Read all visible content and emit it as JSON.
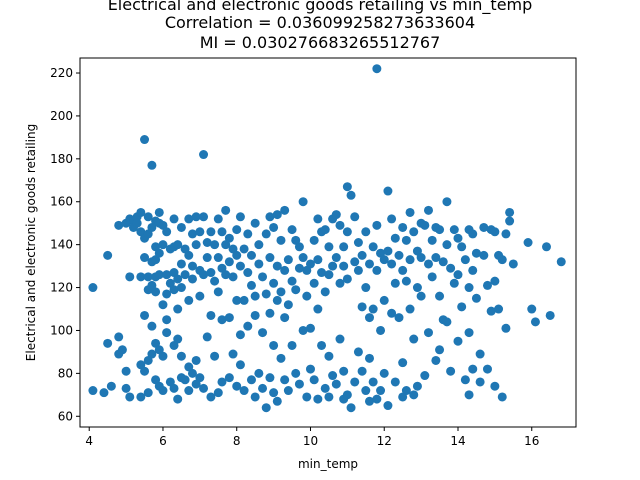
{
  "chart_data": {
    "type": "scatter",
    "title_lines": [
      "Electrical and electronic goods retailing vs min_temp",
      "Correlation = 0.036099258273633604",
      "MI = 0.030276683265512767"
    ],
    "xlabel": "min_temp",
    "ylabel": "Electrical and electronic goods retailing",
    "xlim": [
      3.75,
      17.2
    ],
    "ylim": [
      55,
      227
    ],
    "xticks": [
      4,
      6,
      8,
      10,
      12,
      14,
      16
    ],
    "yticks": [
      60,
      80,
      100,
      120,
      140,
      160,
      180,
      200,
      220
    ],
    "marker_color": "#1f77b4",
    "points": [
      [
        4.1,
        120
      ],
      [
        4.1,
        72
      ],
      [
        4.4,
        71
      ],
      [
        4.5,
        135
      ],
      [
        4.5,
        94
      ],
      [
        4.6,
        74
      ],
      [
        4.8,
        149
      ],
      [
        4.8,
        89
      ],
      [
        4.8,
        97
      ],
      [
        4.9,
        91
      ],
      [
        5.0,
        150
      ],
      [
        5.0,
        81
      ],
      [
        5.0,
        73
      ],
      [
        5.1,
        152
      ],
      [
        5.1,
        125
      ],
      [
        5.1,
        69
      ],
      [
        5.2,
        151
      ],
      [
        5.2,
        148
      ],
      [
        5.3,
        153
      ],
      [
        5.3,
        150
      ],
      [
        5.4,
        155
      ],
      [
        5.4,
        146
      ],
      [
        5.4,
        125
      ],
      [
        5.4,
        84
      ],
      [
        5.4,
        69
      ],
      [
        5.5,
        189
      ],
      [
        5.5,
        143
      ],
      [
        5.5,
        134
      ],
      [
        5.5,
        107
      ],
      [
        5.5,
        81
      ],
      [
        5.6,
        153
      ],
      [
        5.6,
        145
      ],
      [
        5.6,
        125
      ],
      [
        5.6,
        119
      ],
      [
        5.6,
        86
      ],
      [
        5.6,
        71
      ],
      [
        5.7,
        177
      ],
      [
        5.7,
        148
      ],
      [
        5.7,
        132
      ],
      [
        5.7,
        121
      ],
      [
        5.7,
        102
      ],
      [
        5.7,
        89
      ],
      [
        5.8,
        151
      ],
      [
        5.8,
        139
      ],
      [
        5.8,
        133
      ],
      [
        5.8,
        125
      ],
      [
        5.8,
        118
      ],
      [
        5.8,
        94
      ],
      [
        5.8,
        77
      ],
      [
        5.9,
        155
      ],
      [
        5.9,
        150
      ],
      [
        5.9,
        136
      ],
      [
        5.9,
        126
      ],
      [
        5.9,
        91
      ],
      [
        5.9,
        74
      ],
      [
        6.0,
        149
      ],
      [
        6.0,
        140
      ],
      [
        6.0,
        112
      ],
      [
        6.0,
        88
      ],
      [
        6.0,
        72
      ],
      [
        6.1,
        146
      ],
      [
        6.1,
        126
      ],
      [
        6.1,
        117
      ],
      [
        6.1,
        105
      ],
      [
        6.1,
        99
      ],
      [
        6.2,
        138
      ],
      [
        6.2,
        122
      ],
      [
        6.2,
        76
      ],
      [
        6.3,
        152
      ],
      [
        6.3,
        139
      ],
      [
        6.3,
        127
      ],
      [
        6.3,
        119
      ],
      [
        6.3,
        93
      ],
      [
        6.3,
        73
      ],
      [
        6.4,
        140
      ],
      [
        6.4,
        124
      ],
      [
        6.4,
        110
      ],
      [
        6.4,
        96
      ],
      [
        6.4,
        68
      ],
      [
        6.5,
        148
      ],
      [
        6.5,
        131
      ],
      [
        6.5,
        120
      ],
      [
        6.5,
        88
      ],
      [
        6.5,
        78
      ],
      [
        6.6,
        138
      ],
      [
        6.6,
        126
      ],
      [
        6.6,
        77
      ],
      [
        6.7,
        152
      ],
      [
        6.7,
        135
      ],
      [
        6.7,
        114
      ],
      [
        6.7,
        83
      ],
      [
        6.7,
        72
      ],
      [
        6.8,
        145
      ],
      [
        6.8,
        130
      ],
      [
        6.8,
        124
      ],
      [
        6.8,
        80
      ],
      [
        6.9,
        153
      ],
      [
        6.9,
        140
      ],
      [
        6.9,
        86
      ],
      [
        6.9,
        75
      ],
      [
        7.0,
        146
      ],
      [
        7.0,
        128
      ],
      [
        7.0,
        116
      ],
      [
        7.0,
        78
      ],
      [
        7.1,
        182
      ],
      [
        7.1,
        153
      ],
      [
        7.1,
        126
      ],
      [
        7.1,
        73
      ],
      [
        7.2,
        141
      ],
      [
        7.2,
        134
      ],
      [
        7.2,
        97
      ],
      [
        7.3,
        146
      ],
      [
        7.3,
        127
      ],
      [
        7.3,
        107
      ],
      [
        7.3,
        69
      ],
      [
        7.4,
        140
      ],
      [
        7.4,
        123
      ],
      [
        7.4,
        88
      ],
      [
        7.5,
        152
      ],
      [
        7.5,
        134
      ],
      [
        7.5,
        118
      ],
      [
        7.5,
        71
      ],
      [
        7.6,
        146
      ],
      [
        7.6,
        129
      ],
      [
        7.6,
        105
      ],
      [
        7.6,
        76
      ],
      [
        7.7,
        156
      ],
      [
        7.7,
        140
      ],
      [
        7.7,
        126
      ],
      [
        7.8,
        143
      ],
      [
        7.8,
        132
      ],
      [
        7.8,
        106
      ],
      [
        7.8,
        78
      ],
      [
        7.9,
        138
      ],
      [
        7.9,
        125
      ],
      [
        7.9,
        89
      ],
      [
        8.0,
        147
      ],
      [
        8.0,
        135
      ],
      [
        8.0,
        114
      ],
      [
        8.0,
        74
      ],
      [
        8.1,
        153
      ],
      [
        8.1,
        130
      ],
      [
        8.1,
        98
      ],
      [
        8.1,
        84
      ],
      [
        8.2,
        138
      ],
      [
        8.2,
        114
      ],
      [
        8.2,
        72
      ],
      [
        8.3,
        145
      ],
      [
        8.3,
        127
      ],
      [
        8.3,
        102
      ],
      [
        8.4,
        135
      ],
      [
        8.4,
        121
      ],
      [
        8.4,
        77
      ],
      [
        8.5,
        150
      ],
      [
        8.5,
        116
      ],
      [
        8.5,
        107
      ],
      [
        8.5,
        69
      ],
      [
        8.6,
        140
      ],
      [
        8.6,
        131
      ],
      [
        8.6,
        80
      ],
      [
        8.7,
        125
      ],
      [
        8.7,
        99
      ],
      [
        8.7,
        73
      ],
      [
        8.8,
        145
      ],
      [
        8.8,
        117
      ],
      [
        8.8,
        64
      ],
      [
        8.9,
        153
      ],
      [
        8.9,
        134
      ],
      [
        8.9,
        108
      ],
      [
        8.9,
        78
      ],
      [
        9.0,
        148
      ],
      [
        9.0,
        122
      ],
      [
        9.0,
        93
      ],
      [
        9.0,
        71
      ],
      [
        9.1,
        154
      ],
      [
        9.1,
        130
      ],
      [
        9.1,
        114
      ],
      [
        9.1,
        67
      ],
      [
        9.2,
        142
      ],
      [
        9.2,
        118
      ],
      [
        9.2,
        87
      ],
      [
        9.3,
        156
      ],
      [
        9.3,
        128
      ],
      [
        9.3,
        106
      ],
      [
        9.3,
        77
      ],
      [
        9.4,
        133
      ],
      [
        9.4,
        112
      ],
      [
        9.4,
        72
      ],
      [
        9.5,
        147
      ],
      [
        9.5,
        123
      ],
      [
        9.5,
        93
      ],
      [
        9.6,
        142
      ],
      [
        9.6,
        119
      ],
      [
        9.6,
        80
      ],
      [
        9.7,
        139
      ],
      [
        9.7,
        129
      ],
      [
        9.7,
        75
      ],
      [
        9.8,
        160
      ],
      [
        9.8,
        134
      ],
      [
        9.8,
        100
      ],
      [
        9.9,
        128
      ],
      [
        9.9,
        116
      ],
      [
        9.9,
        69
      ],
      [
        10.0,
        131
      ],
      [
        10.0,
        101
      ],
      [
        10.0,
        82
      ],
      [
        10.1,
        142
      ],
      [
        10.1,
        122
      ],
      [
        10.1,
        77
      ],
      [
        10.2,
        152
      ],
      [
        10.2,
        133
      ],
      [
        10.2,
        110
      ],
      [
        10.2,
        68
      ],
      [
        10.3,
        146
      ],
      [
        10.3,
        127
      ],
      [
        10.3,
        93
      ],
      [
        10.4,
        147
      ],
      [
        10.4,
        118
      ],
      [
        10.4,
        73
      ],
      [
        10.5,
        139
      ],
      [
        10.5,
        126
      ],
      [
        10.5,
        88
      ],
      [
        10.5,
        69
      ],
      [
        10.6,
        152
      ],
      [
        10.6,
        130
      ],
      [
        10.6,
        79
      ],
      [
        10.7,
        154
      ],
      [
        10.7,
        134
      ],
      [
        10.7,
        75
      ],
      [
        10.8,
        149
      ],
      [
        10.8,
        122
      ],
      [
        10.8,
        96
      ],
      [
        10.9,
        139
      ],
      [
        10.9,
        130
      ],
      [
        10.9,
        81
      ],
      [
        10.9,
        68
      ],
      [
        11.0,
        167
      ],
      [
        11.0,
        146
      ],
      [
        11.0,
        124
      ],
      [
        11.0,
        70
      ],
      [
        11.1,
        163
      ],
      [
        11.1,
        64
      ],
      [
        11.2,
        153
      ],
      [
        11.2,
        132
      ],
      [
        11.2,
        76
      ],
      [
        11.3,
        141
      ],
      [
        11.3,
        128
      ],
      [
        11.3,
        90
      ],
      [
        11.4,
        135
      ],
      [
        11.4,
        111
      ],
      [
        11.4,
        81
      ],
      [
        11.5,
        146
      ],
      [
        11.5,
        120
      ],
      [
        11.5,
        72
      ],
      [
        11.6,
        131
      ],
      [
        11.6,
        106
      ],
      [
        11.6,
        87
      ],
      [
        11.6,
        67
      ],
      [
        11.7,
        139
      ],
      [
        11.7,
        110
      ],
      [
        11.7,
        76
      ],
      [
        11.8,
        222
      ],
      [
        11.8,
        149
      ],
      [
        11.8,
        128
      ],
      [
        11.8,
        68
      ],
      [
        11.9,
        136
      ],
      [
        11.9,
        100
      ],
      [
        11.9,
        72
      ],
      [
        12.0,
        133
      ],
      [
        12.0,
        114
      ],
      [
        12.0,
        80
      ],
      [
        12.1,
        165
      ],
      [
        12.1,
        137
      ],
      [
        12.1,
        65
      ],
      [
        12.2,
        152
      ],
      [
        12.2,
        131
      ],
      [
        12.2,
        108
      ],
      [
        12.3,
        143
      ],
      [
        12.3,
        122
      ],
      [
        12.3,
        76
      ],
      [
        12.4,
        135
      ],
      [
        12.4,
        106
      ],
      [
        12.5,
        148
      ],
      [
        12.5,
        128
      ],
      [
        12.5,
        85
      ],
      [
        12.5,
        69
      ],
      [
        12.6,
        142
      ],
      [
        12.6,
        123
      ],
      [
        12.6,
        72
      ],
      [
        12.7,
        155
      ],
      [
        12.7,
        133
      ],
      [
        12.7,
        110
      ],
      [
        12.8,
        146
      ],
      [
        12.8,
        96
      ],
      [
        12.8,
        70
      ],
      [
        12.9,
        137
      ],
      [
        12.9,
        120
      ],
      [
        12.9,
        74
      ],
      [
        13.0,
        150
      ],
      [
        13.0,
        134
      ],
      [
        13.0,
        116
      ],
      [
        13.1,
        149
      ],
      [
        13.1,
        79
      ],
      [
        13.2,
        156
      ],
      [
        13.2,
        131
      ],
      [
        13.2,
        99
      ],
      [
        13.3,
        142
      ],
      [
        13.3,
        125
      ],
      [
        13.4,
        148
      ],
      [
        13.4,
        134
      ],
      [
        13.4,
        86
      ],
      [
        13.5,
        147
      ],
      [
        13.5,
        116
      ],
      [
        13.5,
        91
      ],
      [
        13.6,
        132
      ],
      [
        13.6,
        105
      ],
      [
        13.7,
        160
      ],
      [
        13.7,
        140
      ],
      [
        13.7,
        104
      ],
      [
        13.8,
        129
      ],
      [
        13.8,
        81
      ],
      [
        13.9,
        147
      ],
      [
        13.9,
        122
      ],
      [
        14.0,
        143
      ],
      [
        14.0,
        126
      ],
      [
        14.0,
        95
      ],
      [
        14.1,
        139
      ],
      [
        14.1,
        111
      ],
      [
        14.2,
        133
      ],
      [
        14.2,
        77
      ],
      [
        14.3,
        147
      ],
      [
        14.3,
        120
      ],
      [
        14.3,
        99
      ],
      [
        14.3,
        70
      ],
      [
        14.4,
        145
      ],
      [
        14.4,
        128
      ],
      [
        14.4,
        82
      ],
      [
        14.5,
        136
      ],
      [
        14.5,
        115
      ],
      [
        14.6,
        89
      ],
      [
        14.6,
        76
      ],
      [
        14.7,
        148
      ],
      [
        14.7,
        135
      ],
      [
        14.8,
        121
      ],
      [
        14.8,
        82
      ],
      [
        14.9,
        147
      ],
      [
        14.9,
        109
      ],
      [
        15.0,
        146
      ],
      [
        15.0,
        123
      ],
      [
        15.0,
        74
      ],
      [
        15.1,
        135
      ],
      [
        15.1,
        110
      ],
      [
        15.2,
        69
      ],
      [
        15.2,
        133
      ],
      [
        15.3,
        145
      ],
      [
        15.3,
        101
      ],
      [
        15.4,
        155
      ],
      [
        15.4,
        151
      ],
      [
        15.5,
        131
      ],
      [
        15.9,
        141
      ],
      [
        16.0,
        110
      ],
      [
        16.1,
        104
      ],
      [
        16.4,
        139
      ],
      [
        16.5,
        107
      ],
      [
        16.8,
        132
      ]
    ]
  }
}
